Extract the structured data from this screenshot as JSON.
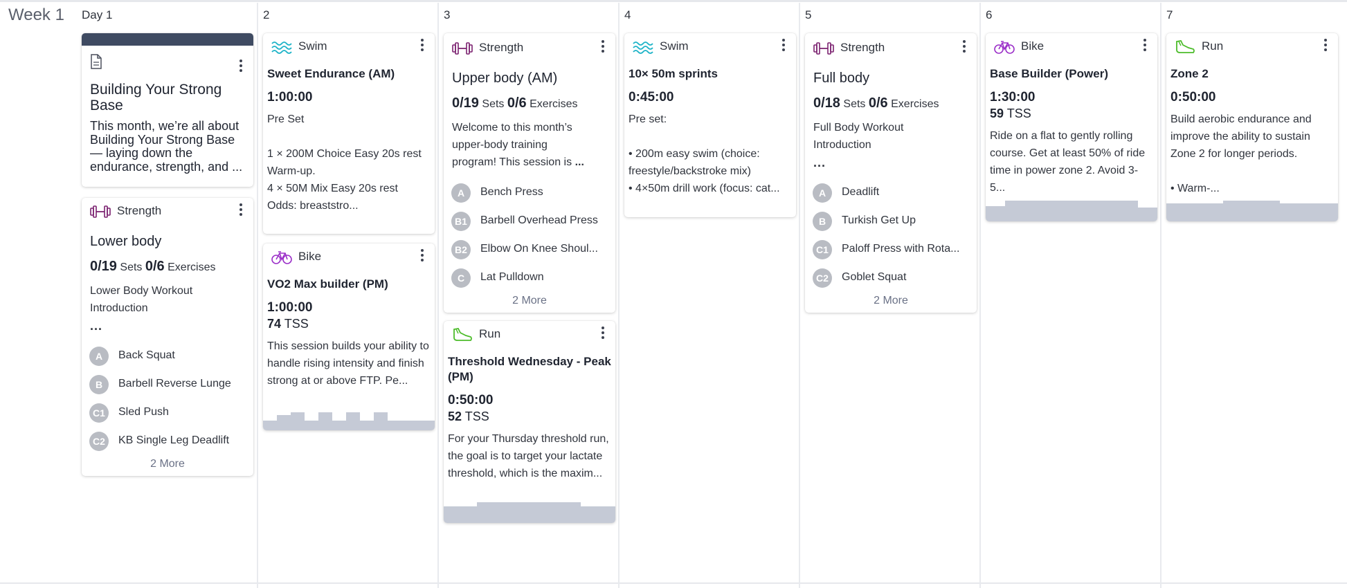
{
  "week_label": "Week 1",
  "days": [
    "Day 1",
    "2",
    "3",
    "4",
    "5",
    "6",
    "7"
  ],
  "colors": {
    "strength": "#7a1f6e",
    "swim": "#1fb4c8",
    "bike": "#9b2fc8",
    "run": "#4cbc2a",
    "graph": "#c5cad6",
    "article_band": "#3f4b62"
  },
  "day1": {
    "article": {
      "icon": "document-icon",
      "title": "Building Your Strong Base",
      "body": "This month, we’re all about Building Your Strong Base — laying down the endurance, strength, and ..."
    },
    "lower_body": {
      "sport": "Strength",
      "title": "Lower body",
      "sets": "0/19",
      "sets_label": "Sets",
      "exercises": "0/6",
      "exercises_label": "Exercises",
      "desc": "Lower Body Workout Introduction",
      "ellipsis": "...",
      "items": [
        {
          "badge": "A",
          "name": "Back Squat"
        },
        {
          "badge": "B",
          "name": "Barbell Reverse Lunge"
        },
        {
          "badge": "C1",
          "name": "Sled Push"
        },
        {
          "badge": "C2",
          "name": "KB Single Leg Deadlift"
        }
      ],
      "more": "2 More"
    }
  },
  "day2": {
    "swim": {
      "sport": "Swim",
      "title": "Sweet Endurance (AM)",
      "duration": "1:00:00",
      "desc": "Pre Set\n\n1 × 200M Choice Easy 20s rest\n Warm-up.\n4 × 50M Mix Easy 20s rest\n Odds: breaststro..."
    },
    "bike": {
      "sport": "Bike",
      "title": "VO2 Max builder (PM)",
      "duration": "1:00:00",
      "tss_value": "74",
      "tss_label": "TSS",
      "desc": "This session builds your ability to handle rising intensity and finish strong at or above FTP. Pe..."
    }
  },
  "day3": {
    "strength": {
      "sport": "Strength",
      "title": "Upper body (AM)",
      "sets": "0/19",
      "sets_label": "Sets",
      "exercises": "0/6",
      "exercises_label": "Exercises",
      "desc": "Welcome to this month’s upper-body training program! This session is",
      "ellipsis": "...",
      "items": [
        {
          "badge": "A",
          "name": "Bench Press"
        },
        {
          "badge": "B1",
          "name": "Barbell Overhead Press"
        },
        {
          "badge": "B2",
          "name": "Elbow On Knee Shoul..."
        },
        {
          "badge": "C",
          "name": "Lat Pulldown"
        }
      ],
      "more": "2 More"
    },
    "run": {
      "sport": "Run",
      "title": "Threshold Wednesday - Peak (PM)",
      "duration": "0:50:00",
      "tss_value": "52",
      "tss_label": "TSS",
      "desc": "For your Thursday threshold run, the goal is to target your lactate threshold, which is the maxim..."
    }
  },
  "day4": {
    "swim": {
      "sport": "Swim",
      "title": "10× 50m sprints",
      "duration": "0:45:00",
      "desc": "Pre set:\n\n • 200m easy swim (choice: freestyle/backstroke mix)\n • 4×50m drill work (focus: cat..."
    }
  },
  "day5": {
    "strength": {
      "sport": "Strength",
      "title": "Full body",
      "sets": "0/18",
      "sets_label": "Sets",
      "exercises": "0/6",
      "exercises_label": "Exercises",
      "desc": "Full Body Workout Introduction",
      "ellipsis": "...",
      "items": [
        {
          "badge": "A",
          "name": "Deadlift"
        },
        {
          "badge": "B",
          "name": "Turkish Get Up"
        },
        {
          "badge": "C1",
          "name": "Paloff Press with Rota..."
        },
        {
          "badge": "C2",
          "name": "Goblet Squat"
        }
      ],
      "more": "2 More"
    }
  },
  "day6": {
    "bike": {
      "sport": "Bike",
      "title": "Base Builder (Power)",
      "duration": "1:30:00",
      "tss_value": "59",
      "tss_label": "TSS",
      "desc": "Ride on a flat to gently rolling course. Get at least 50% of ride time in power zone 2. Avoid 3-5..."
    }
  },
  "day7": {
    "run": {
      "sport": "Run",
      "title": "Zone 2",
      "duration": "0:50:00",
      "desc": "Build aerobic endurance and improve the ability to sustain Zone 2 for longer periods.\n\n • Warm-..."
    }
  }
}
